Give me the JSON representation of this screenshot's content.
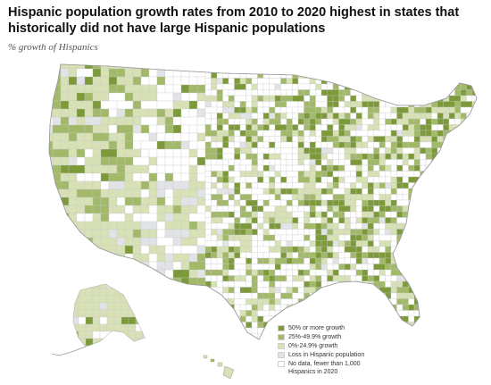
{
  "header": {
    "title": "Hispanic population growth rates from 2010 to 2020 highest in states that historically did not have large Hispanic populations",
    "subtitle": "% growth of Hispanics"
  },
  "legend": {
    "items": [
      {
        "label": "50% or more growth",
        "color": "#7d9a3b"
      },
      {
        "label": "25%-49.9% growth",
        "color": "#a3b96a"
      },
      {
        "label": "0%-24.9% growth",
        "color": "#d7e1b5"
      },
      {
        "label": "Loss in Hispanic population",
        "color": "#e2e3e7"
      },
      {
        "label": "No data, fewer than 1,000",
        "label_line2": "Hispanics in 2020",
        "color": "#ffffff"
      }
    ]
  },
  "map": {
    "colors": {
      "strong": "#7d9a3b",
      "medium": "#a3b96a",
      "light": "#d7e1b5",
      "loss": "#e2e3e7",
      "none": "#ffffff",
      "border": "#c8c8c8"
    }
  }
}
